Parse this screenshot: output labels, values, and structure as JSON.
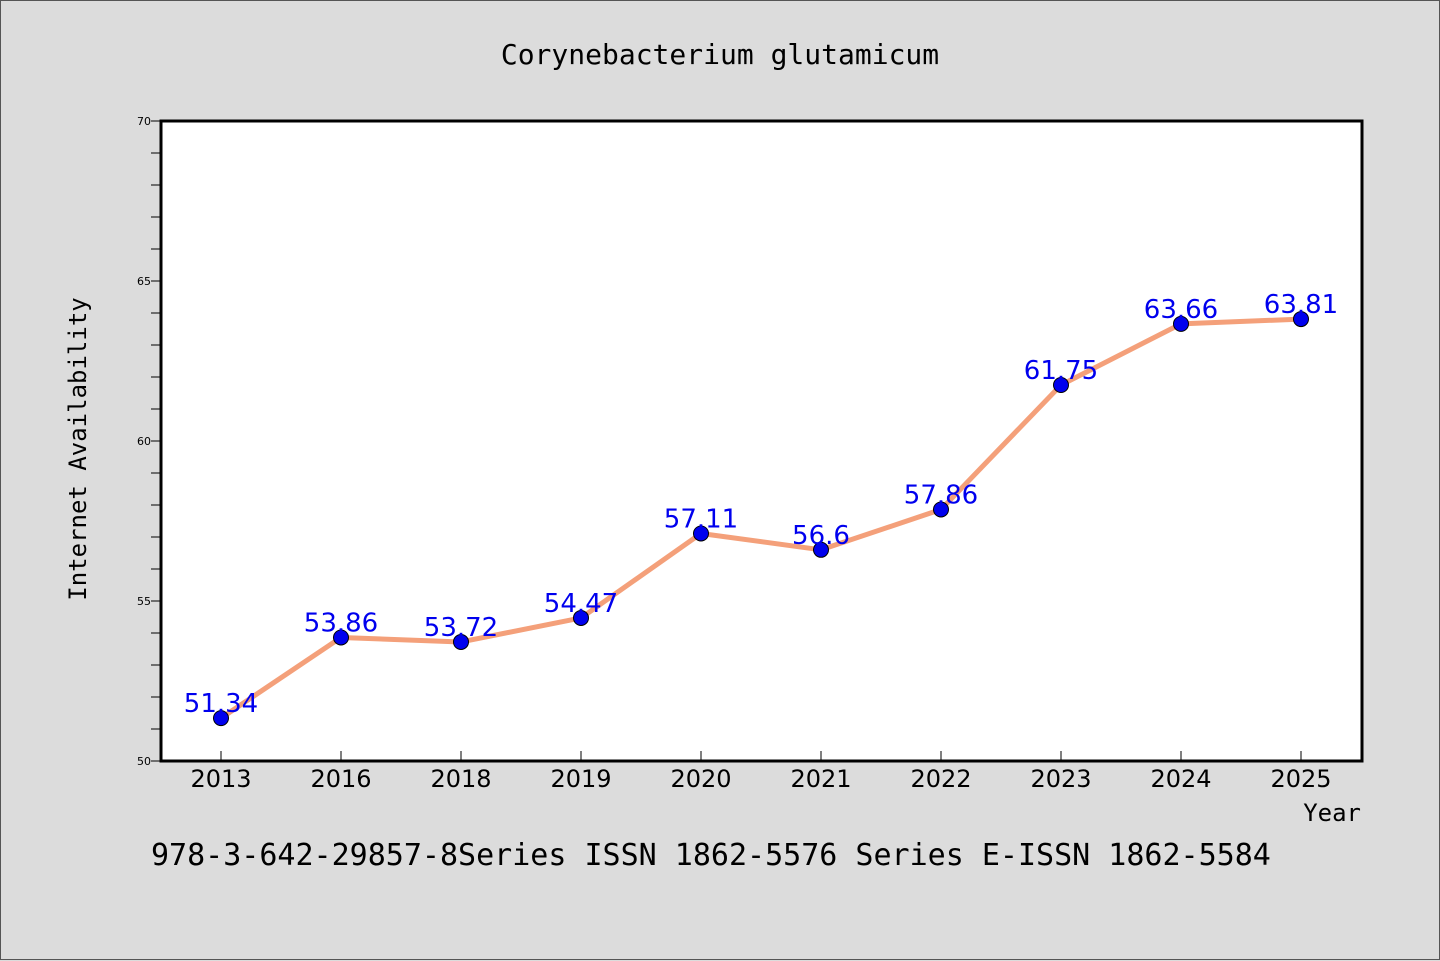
{
  "chart_data": {
    "type": "line",
    "title": "Corynebacterium glutamicum",
    "xlabel": "Year",
    "ylabel": "Internet Availability",
    "categories": [
      "2013",
      "2016",
      "2018",
      "2019",
      "2020",
      "2021",
      "2022",
      "2023",
      "2024",
      "2025"
    ],
    "series": [
      {
        "values": [
          51.34,
          53.86,
          53.72,
          54.47,
          57.11,
          56.6,
          57.86,
          61.75,
          63.66,
          63.81
        ],
        "labels": [
          "51.34",
          "53.86",
          "53.72",
          "54.47",
          "57.11",
          "56.6",
          "57.86",
          "61.75",
          "63.66",
          "63.81"
        ]
      }
    ],
    "ylim": [
      50,
      70
    ],
    "yticks": [
      "50",
      "55",
      "60",
      "65",
      "70"
    ],
    "grid": false,
    "footer": "978-3-642-29857-8Series ISSN 1862-5576 Series E-ISSN 1862-5584",
    "colors": {
      "line": "#f4a07a",
      "marker": "#0000ee",
      "label": "#0000ee",
      "background": "#dcdcdc",
      "plot_background": "#ffffff"
    }
  }
}
